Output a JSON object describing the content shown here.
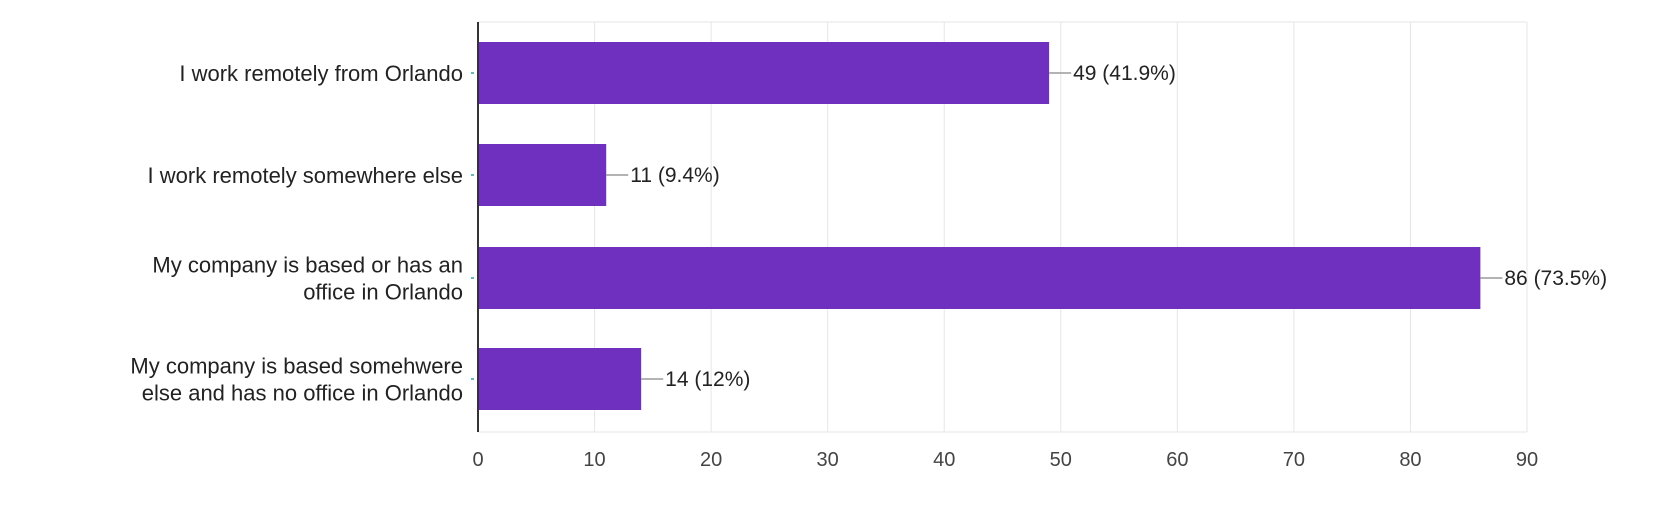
{
  "chart_data": {
    "type": "bar",
    "orientation": "horizontal",
    "categories": [
      [
        "I work remotely from Orlando"
      ],
      [
        "I work remotely somewhere else"
      ],
      [
        "My company is based or has an",
        "office in Orlando"
      ],
      [
        "My company is based somehwere",
        "else and has no office in Orlando"
      ]
    ],
    "values": [
      49,
      11,
      86,
      14
    ],
    "data_labels": [
      "49 (41.9%)",
      "11 (9.4%)",
      "86 (73.5%)",
      "14 (12%)"
    ],
    "xlim": [
      0,
      90
    ],
    "x_ticks": [
      "0",
      "10",
      "20",
      "30",
      "40",
      "50",
      "60",
      "70",
      "80",
      "90"
    ],
    "grid": true,
    "legend": "none",
    "title": "",
    "xlabel": "",
    "ylabel": "",
    "colors": {
      "bar": "#7030BF",
      "grid": "#e6e6e6",
      "axis": "#333333",
      "leader": "#9a9a9a",
      "category_tick": "#3aa0a0"
    }
  }
}
